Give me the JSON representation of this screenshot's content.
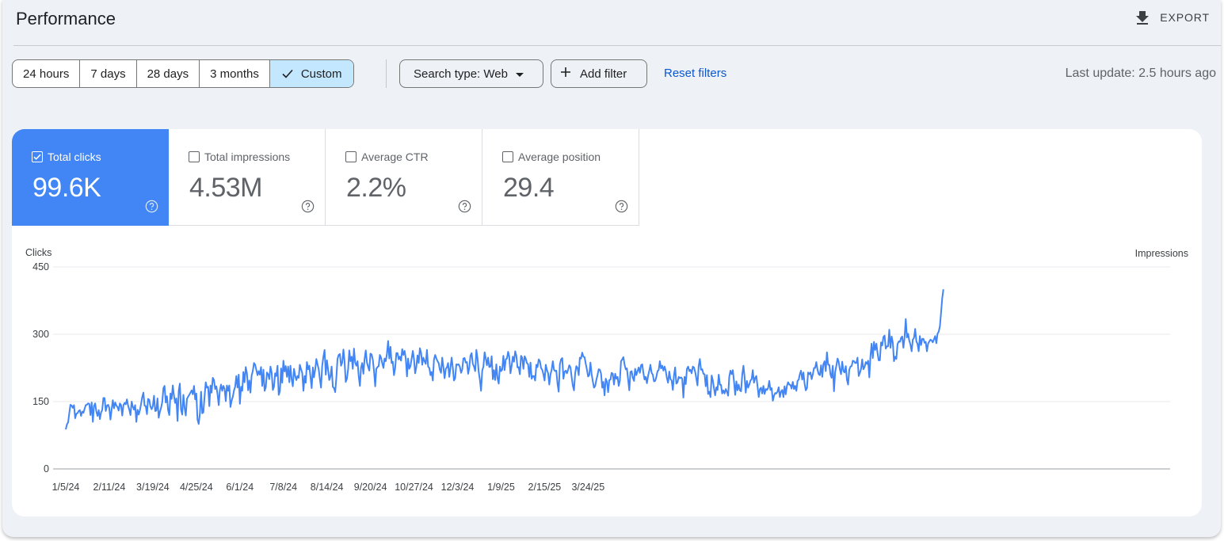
{
  "page": {
    "title": "Performance",
    "export_label": "EXPORT",
    "export_icon": "download-icon"
  },
  "filters": {
    "ranges": [
      "24 hours",
      "7 days",
      "28 days",
      "3 months",
      "Custom"
    ],
    "selected_range": "Custom",
    "search_type_label": "Search type: Web",
    "add_filter_label": "Add filter",
    "reset_label": "Reset filters",
    "last_update": "Last update: 2.5 hours ago"
  },
  "metrics": [
    {
      "label": "Total clicks",
      "value": "99.6K",
      "checked": true,
      "color": "#4285f4"
    },
    {
      "label": "Total impressions",
      "value": "4.53M",
      "checked": false,
      "color": "#5e35b1"
    },
    {
      "label": "Average CTR",
      "value": "2.2%",
      "checked": false,
      "color": "#00897b"
    },
    {
      "label": "Average position",
      "value": "29.4",
      "checked": false,
      "color": "#e8710a"
    }
  ],
  "chart_data": {
    "type": "line",
    "ylabel": "Clicks",
    "y2label": "Impressions",
    "ylim": [
      0,
      450
    ],
    "yticks": [
      0,
      150,
      300,
      450
    ],
    "grid": true,
    "x_start": "2024-01-05",
    "x_tick_labels": [
      "1/5/24",
      "2/11/24",
      "3/19/24",
      "4/25/24",
      "6/1/24",
      "7/8/24",
      "8/14/24",
      "9/20/24",
      "10/27/24",
      "12/3/24",
      "1/9/25",
      "2/15/25",
      "3/24/25"
    ],
    "series": [
      {
        "name": "Total clicks",
        "color": "#4285f4",
        "values": [
          88,
          99,
          104,
          125,
          143,
          141,
          136,
          142,
          113,
          123,
          124,
          129,
          131,
          118,
          128,
          125,
          134,
          142,
          143,
          146,
          145,
          120,
          148,
          105,
          140,
          146,
          128,
          118,
          131,
          111,
          126,
          131,
          158,
          158,
          129,
          141,
          143,
          136,
          110,
          132,
          153,
          135,
          148,
          141,
          138,
          130,
          146,
          142,
          119,
          142,
          147,
          144,
          155,
          141,
          132,
          120,
          150,
          139,
          132,
          142,
          105,
          132,
          121,
          131,
          144,
          160,
          170,
          141,
          140,
          122,
          156,
          154,
          139,
          133,
          140,
          163,
          129,
          130,
          157,
          114,
          127,
          136,
          149,
          180,
          185,
          148,
          162,
          131,
          120,
          168,
          156,
          186,
          163,
          147,
          157,
          107,
          174,
          190,
          132,
          121,
          165,
          136,
          119,
          156,
          161,
          165,
          170,
          175,
          166,
          185,
          155,
          168,
          110,
          100,
          123,
          172,
          124,
          126,
          161,
          193,
          181,
          183,
          140,
          186,
          170,
          203,
          198,
          178,
          184,
          166,
          142,
          175,
          188,
          174,
          185,
          178,
          151,
          186,
          174,
          186,
          138,
          152,
          161,
          175,
          183,
          207,
          181,
          210,
          145,
          183,
          174,
          216,
          193,
          227,
          213,
          175,
          197,
          170,
          208,
          218,
          236,
          232,
          220,
          209,
          218,
          210,
          227,
          185,
          221,
          174,
          182,
          215,
          211,
          200,
          228,
          215,
          176,
          183,
          213,
          207,
          230,
          165,
          173,
          224,
          192,
          241,
          217,
          229,
          205,
          228,
          193,
          230,
          200,
          184,
          223,
          207,
          198,
          207,
          203,
          232,
          222,
          214,
          174,
          207,
          192,
          238,
          222,
          230,
          205,
          180,
          226,
          204,
          221,
          245,
          233,
          222,
          200,
          181,
          230,
          250,
          265,
          210,
          242,
          220,
          198,
          206,
          228,
          183,
          180,
          171,
          204,
          245,
          254,
          256,
          230,
          237,
          266,
          240,
          194,
          201,
          222,
          264,
          240,
          250,
          223,
          268,
          237,
          230,
          240,
          206,
          185,
          225,
          236,
          212,
          245,
          264,
          237,
          228,
          219,
          257,
          255,
          243,
          218,
          184,
          223,
          227,
          229,
          254,
          248,
          235,
          225,
          246,
          240,
          256,
          285,
          246,
          272,
          236,
          239,
          209,
          225,
          258,
          258,
          244,
          250,
          241,
          267,
          254,
          263,
          246,
          206,
          246,
          223,
          229,
          246,
          263,
          244,
          213,
          227,
          253,
          236,
          269,
          259,
          232,
          248,
          240,
          234,
          265,
          228,
          225,
          209,
          216,
          197,
          244,
          254,
          246,
          240,
          236,
          221,
          214,
          248,
          226,
          202,
          223,
          226,
          236,
          205,
          226,
          248,
          225,
          197,
          202,
          233,
          232,
          233,
          227,
          214,
          221,
          246,
          247,
          237,
          238,
          212,
          226,
          252,
          258,
          234,
          228,
          218,
          265,
          246,
          217,
          199,
          174,
          219,
          228,
          260,
          247,
          231,
          248,
          227,
          228,
          251,
          200,
          220,
          198,
          233,
          202,
          190,
          228,
          218,
          221,
          252,
          220,
          244,
          246,
          261,
          250,
          213,
          229,
          250,
          239,
          262,
          252,
          226,
          227,
          211,
          252,
          248,
          223,
          251,
          246,
          236,
          233,
          205,
          237,
          201,
          207,
          207,
          197,
          232,
          227,
          244,
          240,
          225,
          221,
          211,
          197,
          232,
          220,
          213,
          188,
          210,
          221,
          240,
          221,
          218,
          219,
          190,
          172,
          233,
          244,
          247,
          201,
          216,
          219,
          213,
          221,
          231,
          226,
          204,
          186,
          175,
          213,
          229,
          225,
          209,
          248,
          246,
          259,
          250,
          249,
          234,
          221,
          206,
          209,
          237,
          211,
          195,
          181,
          185,
          198,
          209,
          222,
          221,
          212,
          181,
          194,
          164,
          201,
          195,
          171,
          198,
          199,
          214,
          212,
          188,
          212,
          201,
          205,
          185,
          197,
          240,
          244,
          249,
          232,
          222,
          224,
          200,
          175,
          216,
          218,
          203,
          196,
          223,
          209,
          218,
          226,
          214,
          231,
          233,
          214,
          199,
          205,
          191,
          208,
          219,
          232,
          214,
          210,
          195,
          196,
          205,
          218,
          220,
          240,
          224,
          230,
          219,
          228,
          218,
          202,
          192,
          217,
          200,
          197,
          176,
          208,
          226,
          190,
          193,
          205,
          202,
          204,
          201,
          159,
          205,
          189,
          223,
          228,
          218,
          221,
          213,
          228,
          226,
          216,
          201,
          186,
          229,
          245,
          221,
          222,
          212,
          211,
          184,
          209,
          167,
          172,
          160,
          208,
          197,
          180,
          164,
          182,
          176,
          210,
          188,
          187,
          168,
          175,
          168,
          178,
          172,
          163,
          205,
          219,
          211,
          220,
          195,
          165,
          195,
          175,
          188,
          175,
          173,
          210,
          230,
          206,
          170,
          196,
          181,
          188,
          197,
          200,
          220,
          192,
          203,
          207,
          184,
          160,
          178,
          181,
          168,
          185,
          167,
          178,
          176,
          180,
          196,
          176,
          180,
          152,
          163,
          169,
          168,
          172,
          182,
          160,
          172,
          176,
          160,
          184,
          166,
          185,
          193,
          188,
          187,
          179,
          194,
          178,
          185,
          174,
          196,
          199,
          211,
          219,
          199,
          215,
          190,
          175,
          180,
          215,
          211,
          215,
          200,
          211,
          225,
          225,
          238,
          221,
          211,
          209,
          231,
          205,
          233,
          240,
          218,
          260,
          232,
          232,
          210,
          203,
          230,
          173,
          216,
          230,
          246,
          239,
          222,
          211,
          239,
          218,
          215,
          229,
          199,
          188,
          221,
          228,
          229,
          241,
          240,
          236,
          236,
          248,
          207,
          214,
          223,
          244,
          222,
          227,
          238,
          234,
          241,
          204,
          250,
          279,
          247,
          283,
          265,
          279,
          258,
          242,
          242,
          282,
          275,
          294,
          297,
          268,
          273,
          273,
          310,
          270,
          295,
          281,
          240,
          250,
          245,
          278,
          284,
          283,
          292,
          295,
          270,
          293,
          334,
          293,
          301,
          286,
          277,
          262,
          288,
          292,
          312,
          284,
          279,
          262,
          296,
          276,
          290,
          290,
          281,
          283,
          262,
          279,
          284,
          288,
          286,
          282,
          289,
          296,
          280,
          301,
          306,
          318,
          347,
          380,
          400
        ]
      }
    ]
  }
}
